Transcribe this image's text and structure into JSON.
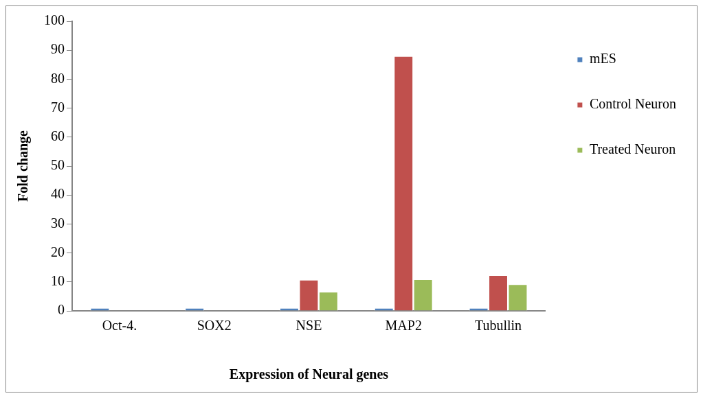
{
  "chart_data": {
    "type": "bar",
    "xlabel": "Expression of Neural genes",
    "ylabel": "Fold change",
    "categories": [
      "Oct-4.",
      "SOX2",
      "NSE",
      "MAP2",
      "Tubullin"
    ],
    "series": [
      {
        "name": "mES",
        "color": "#4f81bd",
        "values": [
          1,
          1,
          1,
          1,
          1
        ]
      },
      {
        "name": "Control Neuron",
        "color": "#c0504d",
        "values": [
          0,
          0,
          10.7,
          88,
          12.3
        ]
      },
      {
        "name": "Treated Neuron",
        "color": "#9bbb59",
        "values": [
          0,
          0,
          6.6,
          10.9,
          9.2
        ]
      }
    ],
    "ylim": [
      0,
      100
    ],
    "yticks": [
      0,
      10,
      20,
      30,
      40,
      50,
      60,
      70,
      80,
      90,
      100
    ],
    "grid": false,
    "legend": "top right"
  }
}
